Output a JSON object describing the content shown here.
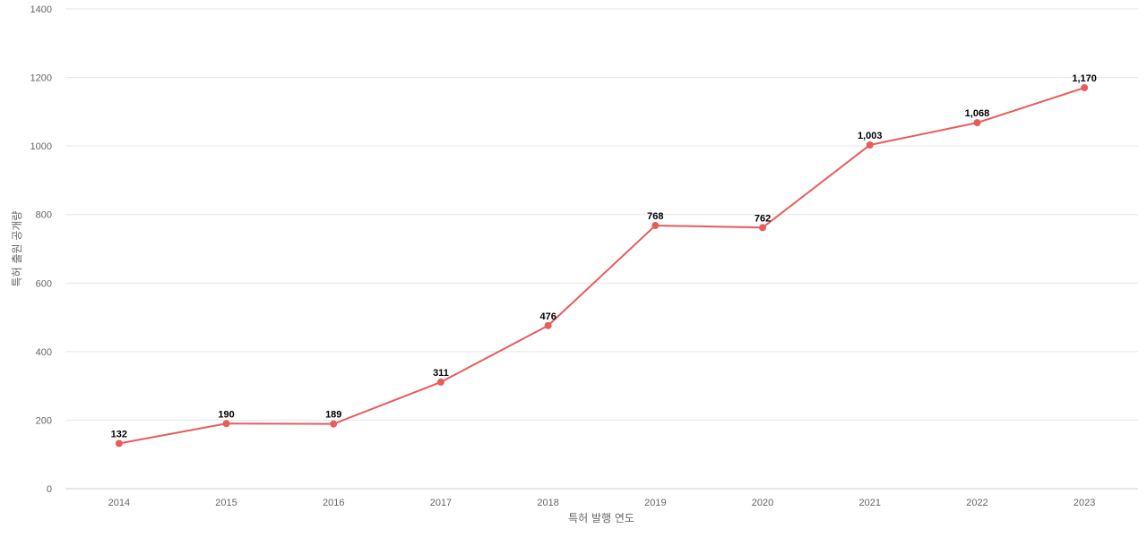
{
  "chart_data": {
    "type": "line",
    "title": "",
    "xlabel": "특허 발행 연도",
    "ylabel": "특허 출원 공개량",
    "categories": [
      "2014",
      "2015",
      "2016",
      "2017",
      "2018",
      "2019",
      "2020",
      "2021",
      "2022",
      "2023"
    ],
    "series": [
      {
        "values": [
          132,
          190,
          189,
          311,
          476,
          768,
          762,
          1003,
          1068,
          1170
        ],
        "data_labels": [
          "132",
          "190",
          "189",
          "311",
          "476",
          "768",
          "762",
          "1,003",
          "1,068",
          "1,170"
        ],
        "color": "#e85c5c"
      }
    ],
    "ylim": [
      0,
      1400
    ],
    "yticks": [
      "0",
      "200",
      "400",
      "600",
      "800",
      "1000",
      "1200",
      "1400"
    ],
    "ytick_values": [
      0,
      200,
      400,
      600,
      800,
      1000,
      1200,
      1400
    ],
    "grid": true,
    "legend": "none"
  }
}
